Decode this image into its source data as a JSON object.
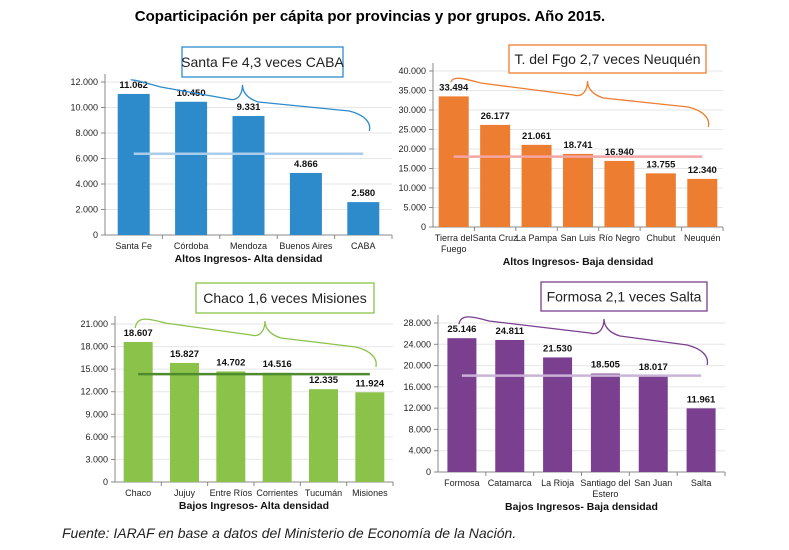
{
  "title": "Coparticipación per cápita por provincias y por grupos. Año 2015.",
  "source": "Fuente: IARAF en base  a datos del Ministerio de Economía de la Nación.",
  "chart_data": [
    {
      "type": "bar",
      "xlabel": "Altos Ingresos- Alta densidad",
      "annotation": "Santa Fe 4,3 veces CABA",
      "color": "#2E8BCB",
      "line_color": "#A9CDEB",
      "average_line": 6370,
      "ylim": [
        0,
        12000
      ],
      "yticks": [
        "0",
        "2.000",
        "4.000",
        "6.000",
        "8.000",
        "10.000",
        "12.000"
      ],
      "categories": [
        [
          "Santa Fe"
        ],
        [
          "Córdoba"
        ],
        [
          "Mendoza"
        ],
        [
          "Buenos Aires"
        ],
        [
          "CABA"
        ]
      ],
      "values": [
        11062,
        10450,
        9331,
        4866,
        2580
      ],
      "labels": [
        "11.062",
        "10.450",
        "9.331",
        "4.866",
        "2.580"
      ]
    },
    {
      "type": "bar",
      "xlabel": "Altos Ingresos- Baja densidad",
      "annotation": "T. del Fgo 2,7 veces Neuquén",
      "color": "#ED7D31",
      "line_color": "#F4A6A6",
      "average_line": 18050,
      "ylim": [
        0,
        40000
      ],
      "yticks": [
        "0",
        "5.000",
        "10.000",
        "15.000",
        "20.000",
        "25.000",
        "30.000",
        "35.000",
        "40.000"
      ],
      "categories": [
        [
          "Tierra del",
          "Fuego"
        ],
        [
          "Santa Cruz"
        ],
        [
          "La Pampa"
        ],
        [
          "San Luis"
        ],
        [
          "Río Negro"
        ],
        [
          "Chubut"
        ],
        [
          "Neuquén"
        ]
      ],
      "values": [
        33494,
        26177,
        21061,
        18741,
        16940,
        13755,
        12340
      ],
      "labels": [
        "33.494",
        "26.177",
        "21.061",
        "18.741",
        "16.940",
        "13.755",
        "12.340"
      ]
    },
    {
      "type": "bar",
      "xlabel": "Bajos Ingresos- Alta densidad",
      "annotation": "Chaco 1,6 veces Misiones",
      "color": "#8BC34A",
      "line_color": "#4E8A2E",
      "average_line": 14340,
      "ylim": [
        0,
        21000
      ],
      "yticks": [
        "0",
        "3.000",
        "6.000",
        "9.000",
        "12.000",
        "15.000",
        "18.000",
        "21.000"
      ],
      "categories": [
        [
          "Chaco"
        ],
        [
          "Jujuy"
        ],
        [
          "Entre Ríos"
        ],
        [
          "Corrientes"
        ],
        [
          "Tucumán"
        ],
        [
          "Misiones"
        ]
      ],
      "values": [
        18607,
        15827,
        14702,
        14516,
        12335,
        11924
      ],
      "labels": [
        "18.607",
        "15.827",
        "14.702",
        "14.516",
        "12.335",
        "11.924"
      ]
    },
    {
      "type": "bar",
      "xlabel": "Bajos Ingresos- Baja densidad",
      "annotation": "Formosa 2,1 veces Salta",
      "color": "#7B3F8F",
      "line_color": "#C9B3D6",
      "average_line": 18100,
      "ylim": [
        0,
        28000
      ],
      "yticks": [
        "0",
        "4.000",
        "8.000",
        "12.000",
        "16.000",
        "20.000",
        "24.000",
        "28.000"
      ],
      "categories": [
        [
          "Formosa"
        ],
        [
          "Catamarca"
        ],
        [
          "La Rioja"
        ],
        [
          "Santiago del",
          "Estero"
        ],
        [
          "San Juan"
        ],
        [
          "Salta"
        ]
      ],
      "values": [
        25146,
        24811,
        21530,
        18505,
        18017,
        11961
      ],
      "labels": [
        "25.146",
        "24.811",
        "21.530",
        "18.505",
        "18.017",
        "11.961"
      ]
    }
  ]
}
